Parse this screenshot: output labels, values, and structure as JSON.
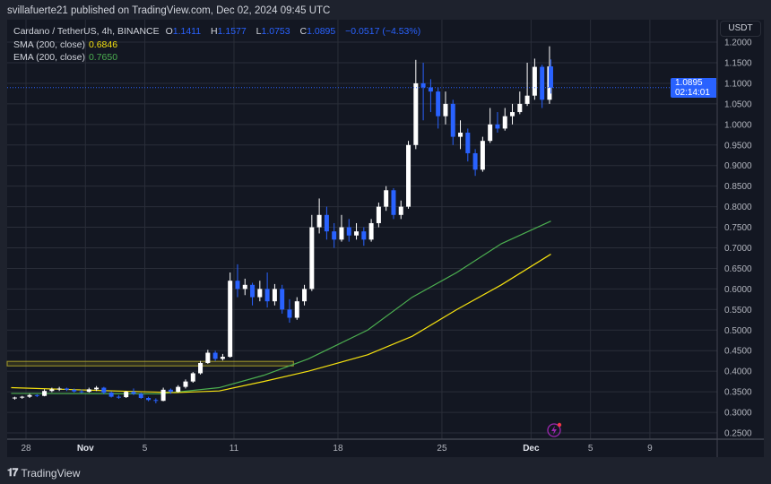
{
  "header": {
    "published": "svillafuerte21 published on TradingView.com, Dec 02, 2024 09:45 UTC"
  },
  "legend": {
    "symbol": "Cardano / TetherUS, 4h, BINANCE",
    "o_label": "O",
    "o": "1.1411",
    "h_label": "H",
    "h": "1.1577",
    "l_label": "L",
    "l": "1.0753",
    "c_label": "C",
    "c": "1.0895",
    "change": "−0.0517 (−4.53%)",
    "sma_label": "SMA (200, close)",
    "sma_value": "0.6846",
    "ema_label": "EMA (200, close)",
    "ema_value": "0.7650"
  },
  "price_axis": {
    "currency": "USDT",
    "last_price": "1.0895",
    "countdown": "02:14:01"
  },
  "footer": {
    "brand": "TradingView"
  },
  "colors": {
    "background": "#131722",
    "frame": "#1e222d",
    "up": "#ffffff",
    "down": "#2962ff",
    "sma": "#f5e10f",
    "ema": "#4caf50",
    "last_price": "#2962ff",
    "grid": "#2a2e39"
  },
  "icons": {
    "alert": "lightning-icon"
  },
  "chart_data": {
    "type": "candlestick",
    "interval_note": "4h",
    "ylim": [
      0.23,
      1.2
    ],
    "y_ticks": [
      "0.2500",
      "0.3000",
      "0.3500",
      "0.4000",
      "0.4500",
      "0.5000",
      "0.5500",
      "0.6000",
      "0.6500",
      "0.7000",
      "0.7500",
      "0.8000",
      "0.8500",
      "0.9000",
      "0.9500",
      "1.0000",
      "1.0500",
      "1.1000",
      "1.1500",
      "1.2000"
    ],
    "x_ticks": [
      {
        "label": "28",
        "date": "2024-10-28"
      },
      {
        "label": "Nov",
        "date": "2024-11-01"
      },
      {
        "label": "5",
        "date": "2024-11-05"
      },
      {
        "label": "11",
        "date": "2024-11-11"
      },
      {
        "label": "18",
        "date": "2024-11-18"
      },
      {
        "label": "25",
        "date": "2024-11-25"
      },
      {
        "label": "Dec",
        "date": "2024-12-01"
      },
      {
        "label": "5",
        "date": "2024-12-05"
      },
      {
        "label": "9",
        "date": "2024-12-09"
      }
    ],
    "xlim": [
      "2024-10-26T18:00",
      "2024-12-13T00:00"
    ],
    "candles": [
      [
        "2024-10-27T00:00",
        0.334,
        0.338,
        0.331,
        0.336
      ],
      [
        "2024-10-27T12:00",
        0.336,
        0.34,
        0.333,
        0.338
      ],
      [
        "2024-10-28T00:00",
        0.338,
        0.345,
        0.335,
        0.342
      ],
      [
        "2024-10-28T12:00",
        0.342,
        0.344,
        0.337,
        0.34
      ],
      [
        "2024-10-29T00:00",
        0.34,
        0.356,
        0.339,
        0.352
      ],
      [
        "2024-10-29T12:00",
        0.352,
        0.36,
        0.349,
        0.356
      ],
      [
        "2024-10-30T00:00",
        0.356,
        0.362,
        0.352,
        0.358
      ],
      [
        "2024-10-30T12:00",
        0.358,
        0.36,
        0.352,
        0.355
      ],
      [
        "2024-10-31T00:00",
        0.355,
        0.358,
        0.348,
        0.351
      ],
      [
        "2024-10-31T12:00",
        0.351,
        0.356,
        0.347,
        0.35
      ],
      [
        "2024-11-01T00:00",
        0.35,
        0.36,
        0.348,
        0.356
      ],
      [
        "2024-11-01T12:00",
        0.356,
        0.364,
        0.352,
        0.36
      ],
      [
        "2024-11-02T00:00",
        0.36,
        0.362,
        0.344,
        0.348
      ],
      [
        "2024-11-02T12:00",
        0.348,
        0.351,
        0.336,
        0.338
      ],
      [
        "2024-11-03T00:00",
        0.338,
        0.342,
        0.333,
        0.337
      ],
      [
        "2024-11-03T12:00",
        0.337,
        0.352,
        0.335,
        0.35
      ],
      [
        "2024-11-04T00:00",
        0.35,
        0.358,
        0.342,
        0.345
      ],
      [
        "2024-11-04T12:00",
        0.345,
        0.348,
        0.333,
        0.335
      ],
      [
        "2024-11-05T00:00",
        0.335,
        0.338,
        0.327,
        0.33
      ],
      [
        "2024-11-05T12:00",
        0.33,
        0.334,
        0.322,
        0.328
      ],
      [
        "2024-11-06T00:00",
        0.328,
        0.36,
        0.327,
        0.355
      ],
      [
        "2024-11-06T12:00",
        0.355,
        0.358,
        0.345,
        0.35
      ],
      [
        "2024-11-07T00:00",
        0.35,
        0.366,
        0.348,
        0.362
      ],
      [
        "2024-11-07T12:00",
        0.362,
        0.38,
        0.358,
        0.375
      ],
      [
        "2024-11-08T00:00",
        0.375,
        0.398,
        0.372,
        0.395
      ],
      [
        "2024-11-08T12:00",
        0.395,
        0.425,
        0.392,
        0.42
      ],
      [
        "2024-11-09T00:00",
        0.42,
        0.452,
        0.418,
        0.445
      ],
      [
        "2024-11-09T12:00",
        0.445,
        0.45,
        0.425,
        0.43
      ],
      [
        "2024-11-10T00:00",
        0.43,
        0.442,
        0.426,
        0.435
      ],
      [
        "2024-11-10T12:00",
        0.435,
        0.64,
        0.433,
        0.62
      ],
      [
        "2024-11-11T00:00",
        0.62,
        0.66,
        0.58,
        0.6
      ],
      [
        "2024-11-11T12:00",
        0.6,
        0.625,
        0.585,
        0.61
      ],
      [
        "2024-11-12T00:00",
        0.61,
        0.615,
        0.56,
        0.58
      ],
      [
        "2024-11-12T12:00",
        0.58,
        0.62,
        0.57,
        0.6
      ],
      [
        "2024-11-13T00:00",
        0.6,
        0.64,
        0.555,
        0.57
      ],
      [
        "2024-11-13T12:00",
        0.57,
        0.612,
        0.56,
        0.6
      ],
      [
        "2024-11-14T00:00",
        0.6,
        0.61,
        0.54,
        0.55
      ],
      [
        "2024-11-14T12:00",
        0.55,
        0.575,
        0.518,
        0.53
      ],
      [
        "2024-11-15T00:00",
        0.53,
        0.58,
        0.525,
        0.57
      ],
      [
        "2024-11-15T12:00",
        0.57,
        0.61,
        0.56,
        0.6
      ],
      [
        "2024-11-16T00:00",
        0.6,
        0.78,
        0.595,
        0.75
      ],
      [
        "2024-11-16T12:00",
        0.75,
        0.82,
        0.735,
        0.78
      ],
      [
        "2024-11-17T00:00",
        0.78,
        0.8,
        0.72,
        0.74
      ],
      [
        "2024-11-17T12:00",
        0.74,
        0.76,
        0.7,
        0.72
      ],
      [
        "2024-11-18T00:00",
        0.72,
        0.78,
        0.715,
        0.75
      ],
      [
        "2024-11-18T12:00",
        0.75,
        0.77,
        0.715,
        0.73
      ],
      [
        "2024-11-19T00:00",
        0.73,
        0.76,
        0.72,
        0.74
      ],
      [
        "2024-11-19T12:00",
        0.74,
        0.75,
        0.705,
        0.72
      ],
      [
        "2024-11-20T00:00",
        0.72,
        0.77,
        0.715,
        0.76
      ],
      [
        "2024-11-20T12:00",
        0.76,
        0.81,
        0.75,
        0.8
      ],
      [
        "2024-11-21T00:00",
        0.8,
        0.85,
        0.79,
        0.84
      ],
      [
        "2024-11-21T12:00",
        0.84,
        0.845,
        0.77,
        0.78
      ],
      [
        "2024-11-22T00:00",
        0.78,
        0.815,
        0.77,
        0.8
      ],
      [
        "2024-11-22T12:00",
        0.8,
        0.96,
        0.795,
        0.95
      ],
      [
        "2024-11-23T00:00",
        0.95,
        1.157,
        0.94,
        1.1
      ],
      [
        "2024-11-23T12:00",
        1.1,
        1.15,
        1.01,
        1.09
      ],
      [
        "2024-11-24T00:00",
        1.09,
        1.11,
        1.03,
        1.08
      ],
      [
        "2024-11-24T12:00",
        1.08,
        1.09,
        0.99,
        1.02
      ],
      [
        "2024-11-25T00:00",
        1.02,
        1.08,
        1.0,
        1.05
      ],
      [
        "2024-11-25T12:00",
        1.05,
        1.06,
        0.95,
        0.97
      ],
      [
        "2024-11-26T00:00",
        0.97,
        1.01,
        0.94,
        0.98
      ],
      [
        "2024-11-26T12:00",
        0.98,
        0.99,
        0.91,
        0.93
      ],
      [
        "2024-11-27T00:00",
        0.93,
        0.94,
        0.875,
        0.89
      ],
      [
        "2024-11-27T12:00",
        0.89,
        0.97,
        0.885,
        0.96
      ],
      [
        "2024-11-28T00:00",
        0.96,
        1.04,
        0.955,
        1.0
      ],
      [
        "2024-11-28T12:00",
        1.0,
        1.03,
        0.98,
        0.99
      ],
      [
        "2024-11-29T00:00",
        0.99,
        1.04,
        0.985,
        1.02
      ],
      [
        "2024-11-29T12:00",
        1.02,
        1.05,
        1.0,
        1.03
      ],
      [
        "2024-11-30T00:00",
        1.03,
        1.08,
        1.025,
        1.05
      ],
      [
        "2024-11-30T12:00",
        1.05,
        1.15,
        1.045,
        1.07
      ],
      [
        "2024-12-01T00:00",
        1.07,
        1.16,
        1.06,
        1.14
      ],
      [
        "2024-12-01T12:00",
        1.14,
        1.145,
        1.04,
        1.06
      ],
      [
        "2024-12-02T00:00",
        1.06,
        1.19,
        1.05,
        1.141
      ],
      [
        "2024-12-02T08:00",
        1.141,
        1.158,
        1.075,
        1.0895
      ]
    ],
    "sma": [
      [
        "2024-10-27T00:00",
        0.36
      ],
      [
        "2024-11-03T00:00",
        0.352
      ],
      [
        "2024-11-07T00:00",
        0.348
      ],
      [
        "2024-11-10T00:00",
        0.352
      ],
      [
        "2024-11-13T00:00",
        0.375
      ],
      [
        "2024-11-16T00:00",
        0.4
      ],
      [
        "2024-11-20T00:00",
        0.44
      ],
      [
        "2024-11-23T00:00",
        0.485
      ],
      [
        "2024-11-26T00:00",
        0.55
      ],
      [
        "2024-11-29T00:00",
        0.61
      ],
      [
        "2024-12-02T08:00",
        0.6846
      ]
    ],
    "ema": [
      [
        "2024-10-27T00:00",
        0.346
      ],
      [
        "2024-11-06T00:00",
        0.345
      ],
      [
        "2024-11-10T00:00",
        0.36
      ],
      [
        "2024-11-13T00:00",
        0.39
      ],
      [
        "2024-11-16T00:00",
        0.43
      ],
      [
        "2024-11-20T00:00",
        0.5
      ],
      [
        "2024-11-23T00:00",
        0.58
      ],
      [
        "2024-11-26T00:00",
        0.64
      ],
      [
        "2024-11-29T00:00",
        0.71
      ],
      [
        "2024-12-02T08:00",
        0.765
      ]
    ],
    "zone": {
      "from": "2024-10-26T18:00",
      "to": "2024-11-15T00:00",
      "low": 0.413,
      "high": 0.424
    },
    "last_price": 1.0895
  }
}
